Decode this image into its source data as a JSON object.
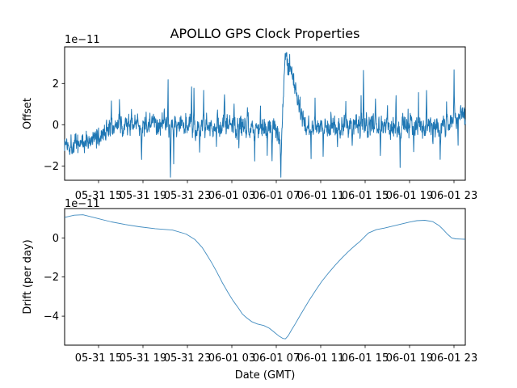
{
  "figure": {
    "background": "#ffffff",
    "axes_edge_color": "#000000",
    "series_color": "#1f77b4",
    "text_color": "#000000"
  },
  "chart_data": [
    {
      "type": "line",
      "panel": "top",
      "title": "APOLLO GPS Clock Properties",
      "ylabel": "Offset",
      "y_scale_note": "1e−11",
      "y_unit": "1e-11 s",
      "x_tick_labels": [
        "05-31 15",
        "05-31 19",
        "05-31 23",
        "06-01 03",
        "06-01 07",
        "06-01 11",
        "06-01 15",
        "06-01 19",
        "06-01 23"
      ],
      "y_tick_labels": [
        "2",
        "0",
        "−2"
      ],
      "y_tick_values": [
        2,
        0,
        -2
      ],
      "ylim": [
        -2.69,
        3.78
      ],
      "xlim_note": "time axis, ticks every 4 hours, 05-31 ~12:00 to 06-01 ~24:00 GMT",
      "grid": false,
      "legend": "none",
      "series": [
        {
          "name": "clock offset",
          "style": "dense noisy line",
          "color": "#1f77b4",
          "n_points": 1500,
          "noise_sd": 0.38,
          "observed_max": 3.45,
          "observed_min": -2.5,
          "trend_anchors": [
            [
              0.0,
              -0.9
            ],
            [
              0.04,
              -0.88
            ],
            [
              0.071,
              -0.78
            ],
            [
              0.091,
              -0.45
            ],
            [
              0.107,
              -0.15
            ],
            [
              0.131,
              -0.05
            ],
            [
              0.242,
              -0.05
            ],
            [
              0.524,
              -0.02
            ],
            [
              0.532,
              -0.3
            ],
            [
              0.538,
              -1.2
            ],
            [
              0.542,
              -0.5
            ],
            [
              0.546,
              1.2
            ],
            [
              0.55,
              3.1
            ],
            [
              0.554,
              3.3
            ],
            [
              0.558,
              2.75
            ],
            [
              0.562,
              2.95
            ],
            [
              0.568,
              2.3
            ],
            [
              0.574,
              1.8
            ],
            [
              0.583,
              1.25
            ],
            [
              0.591,
              0.7
            ],
            [
              0.599,
              0.15
            ],
            [
              0.609,
              -0.1
            ],
            [
              0.685,
              -0.08
            ],
            [
              0.847,
              -0.02
            ],
            [
              0.927,
              -0.1
            ],
            [
              0.958,
              0.0
            ],
            [
              0.978,
              0.35
            ],
            [
              0.992,
              0.55
            ],
            [
              1.0,
              0.3
            ]
          ],
          "spikes": [
            [
              0.117,
              1.1
            ],
            [
              0.137,
              0.9
            ],
            [
              0.167,
              1.0
            ],
            [
              0.192,
              -1.35
            ],
            [
              0.212,
              0.85
            ],
            [
              0.258,
              2.3
            ],
            [
              0.264,
              -2.5
            ],
            [
              0.272,
              -1.8
            ],
            [
              0.317,
              1.9
            ],
            [
              0.323,
              2.35
            ],
            [
              0.337,
              -1.25
            ],
            [
              0.347,
              1.6
            ],
            [
              0.379,
              -1.5
            ],
            [
              0.399,
              1.2
            ],
            [
              0.423,
              1.1
            ],
            [
              0.435,
              -1.05
            ],
            [
              0.456,
              1.2
            ],
            [
              0.474,
              -1.45
            ],
            [
              0.488,
              1.0
            ],
            [
              0.506,
              -1.6
            ],
            [
              0.518,
              -1.5
            ],
            [
              0.54,
              -2.4
            ],
            [
              0.615,
              -1.7
            ],
            [
              0.625,
              1.0
            ],
            [
              0.645,
              -1.3
            ],
            [
              0.665,
              0.95
            ],
            [
              0.681,
              -1.15
            ],
            [
              0.702,
              0.85
            ],
            [
              0.718,
              -0.95
            ],
            [
              0.74,
              1.5
            ],
            [
              0.746,
              2.2
            ],
            [
              0.776,
              1.15
            ],
            [
              0.788,
              -1.25
            ],
            [
              0.806,
              1.0
            ],
            [
              0.827,
              1.35
            ],
            [
              0.837,
              -1.9
            ],
            [
              0.857,
              0.95
            ],
            [
              0.871,
              -1.2
            ],
            [
              0.883,
              1.7
            ],
            [
              0.903,
              1.9
            ],
            [
              0.919,
              -1.15
            ],
            [
              0.937,
              -1.9
            ],
            [
              0.953,
              1.1
            ],
            [
              0.972,
              2.9
            ],
            [
              0.982,
              -0.9
            ],
            [
              0.992,
              0.95
            ]
          ]
        }
      ]
    },
    {
      "type": "line",
      "panel": "bottom",
      "ylabel": "Drift (per day)",
      "xlabel": "Date (GMT)",
      "y_scale_note": "1e−11",
      "y_unit": "1e-11 s/day",
      "x_tick_labels": [
        "05-31 15",
        "05-31 19",
        "05-31 23",
        "06-01 03",
        "06-01 07",
        "06-01 11",
        "06-01 15",
        "06-01 19",
        "06-01 23"
      ],
      "y_tick_labels": [
        "0",
        "−2",
        "−4"
      ],
      "y_tick_values": [
        0,
        -2,
        -4
      ],
      "ylim": [
        -5.48,
        1.5
      ],
      "grid": false,
      "legend": "none",
      "series": [
        {
          "name": "clock drift",
          "style": "smooth thin line",
          "color": "#1f77b4",
          "observed_max": 1.18,
          "observed_min": -5.16,
          "points_frac_value": [
            [
              0.0,
              1.05
            ],
            [
              0.024,
              1.16
            ],
            [
              0.046,
              1.18
            ],
            [
              0.081,
              1.0
            ],
            [
              0.117,
              0.82
            ],
            [
              0.152,
              0.68
            ],
            [
              0.186,
              0.57
            ],
            [
              0.226,
              0.47
            ],
            [
              0.269,
              0.4
            ],
            [
              0.303,
              0.2
            ],
            [
              0.325,
              -0.08
            ],
            [
              0.343,
              -0.48
            ],
            [
              0.356,
              -0.9
            ],
            [
              0.368,
              -1.3
            ],
            [
              0.38,
              -1.75
            ],
            [
              0.394,
              -2.3
            ],
            [
              0.408,
              -2.8
            ],
            [
              0.42,
              -3.2
            ],
            [
              0.434,
              -3.6
            ],
            [
              0.444,
              -3.9
            ],
            [
              0.455,
              -4.1
            ],
            [
              0.467,
              -4.28
            ],
            [
              0.481,
              -4.4
            ],
            [
              0.497,
              -4.48
            ],
            [
              0.511,
              -4.62
            ],
            [
              0.523,
              -4.82
            ],
            [
              0.535,
              -5.02
            ],
            [
              0.545,
              -5.14
            ],
            [
              0.551,
              -5.16
            ],
            [
              0.558,
              -5.0
            ],
            [
              0.566,
              -4.72
            ],
            [
              0.576,
              -4.38
            ],
            [
              0.586,
              -4.02
            ],
            [
              0.596,
              -3.68
            ],
            [
              0.61,
              -3.2
            ],
            [
              0.626,
              -2.7
            ],
            [
              0.642,
              -2.22
            ],
            [
              0.659,
              -1.78
            ],
            [
              0.675,
              -1.4
            ],
            [
              0.691,
              -1.05
            ],
            [
              0.707,
              -0.72
            ],
            [
              0.723,
              -0.42
            ],
            [
              0.737,
              -0.18
            ],
            [
              0.747,
              0.02
            ],
            [
              0.758,
              0.25
            ],
            [
              0.778,
              0.42
            ],
            [
              0.798,
              0.5
            ],
            [
              0.818,
              0.6
            ],
            [
              0.838,
              0.7
            ],
            [
              0.859,
              0.8
            ],
            [
              0.879,
              0.88
            ],
            [
              0.899,
              0.9
            ],
            [
              0.919,
              0.83
            ],
            [
              0.935,
              0.62
            ],
            [
              0.945,
              0.42
            ],
            [
              0.955,
              0.2
            ],
            [
              0.966,
              0.0
            ],
            [
              0.976,
              -0.05
            ],
            [
              0.99,
              -0.06
            ],
            [
              1.0,
              -0.07
            ]
          ]
        }
      ]
    }
  ]
}
